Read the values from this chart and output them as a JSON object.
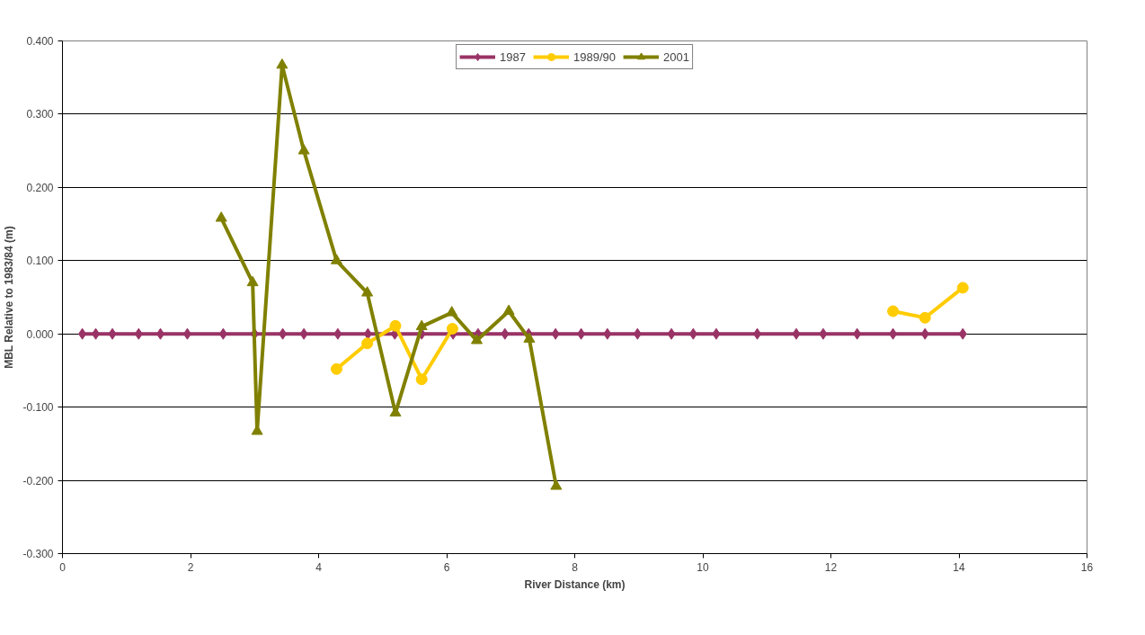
{
  "chart_data": {
    "type": "line",
    "xlabel": "River Distance (km)",
    "ylabel": "MBL Relative to 1983/84 (m)",
    "xlim": [
      0,
      16
    ],
    "xticks": [
      0,
      2,
      4,
      6,
      8,
      10,
      12,
      14,
      16
    ],
    "ylim": [
      -0.3,
      0.4
    ],
    "yticks": [
      {
        "value": -0.3,
        "label": "-0.300"
      },
      {
        "value": -0.2,
        "label": "-0.200"
      },
      {
        "value": -0.1,
        "label": "-0.100"
      },
      {
        "value": 0,
        "label": "0.000"
      },
      {
        "value": 0.1,
        "label": "0.100"
      },
      {
        "value": 0.2,
        "label": "0.200"
      },
      {
        "value": 0.3,
        "label": "0.300"
      },
      {
        "value": 0.4,
        "label": "0.400"
      }
    ],
    "grid": "y",
    "legend": "top",
    "series": [
      {
        "name": "1987",
        "color": "#993366",
        "marker": "diamond",
        "x": [
          0.31,
          0.52,
          0.78,
          1.19,
          1.53,
          1.95,
          2.51,
          3.0,
          3.44,
          3.77,
          4.3,
          4.77,
          5.19,
          5.61,
          6.1,
          6.49,
          6.91,
          7.28,
          7.7,
          8.1,
          8.51,
          8.98,
          9.51,
          9.85,
          10.21,
          10.85,
          11.46,
          11.88,
          12.41,
          12.97,
          13.47,
          14.06
        ],
        "values": [
          0,
          0,
          0,
          0,
          0,
          0,
          0,
          0,
          0,
          0,
          0,
          0,
          0,
          0,
          0,
          0,
          0,
          0,
          0,
          0,
          0,
          0,
          0,
          0,
          0,
          0,
          0,
          0,
          0,
          0,
          0,
          0
        ]
      },
      {
        "name": "1989/90",
        "color": "#ffcc00",
        "marker": "circle",
        "x": [
          4.28,
          4.76,
          5.2,
          5.61,
          6.09,
          null,
          12.97,
          13.47,
          14.06
        ],
        "values": [
          -0.048,
          -0.013,
          0.011,
          -0.062,
          0.007,
          null,
          0.031,
          0.022,
          0.063
        ]
      },
      {
        "name": "2001",
        "color": "#808000",
        "marker": "triangle",
        "x": [
          2.48,
          2.97,
          3.04,
          3.43,
          3.77,
          4.28,
          4.76,
          5.2,
          5.61,
          6.08,
          6.47,
          6.97,
          7.29,
          7.71
        ],
        "values": [
          0.158,
          0.07,
          -0.133,
          0.367,
          0.25,
          0.1,
          0.056,
          -0.108,
          0.01,
          0.029,
          -0.009,
          0.031,
          -0.007,
          -0.208
        ]
      }
    ]
  }
}
